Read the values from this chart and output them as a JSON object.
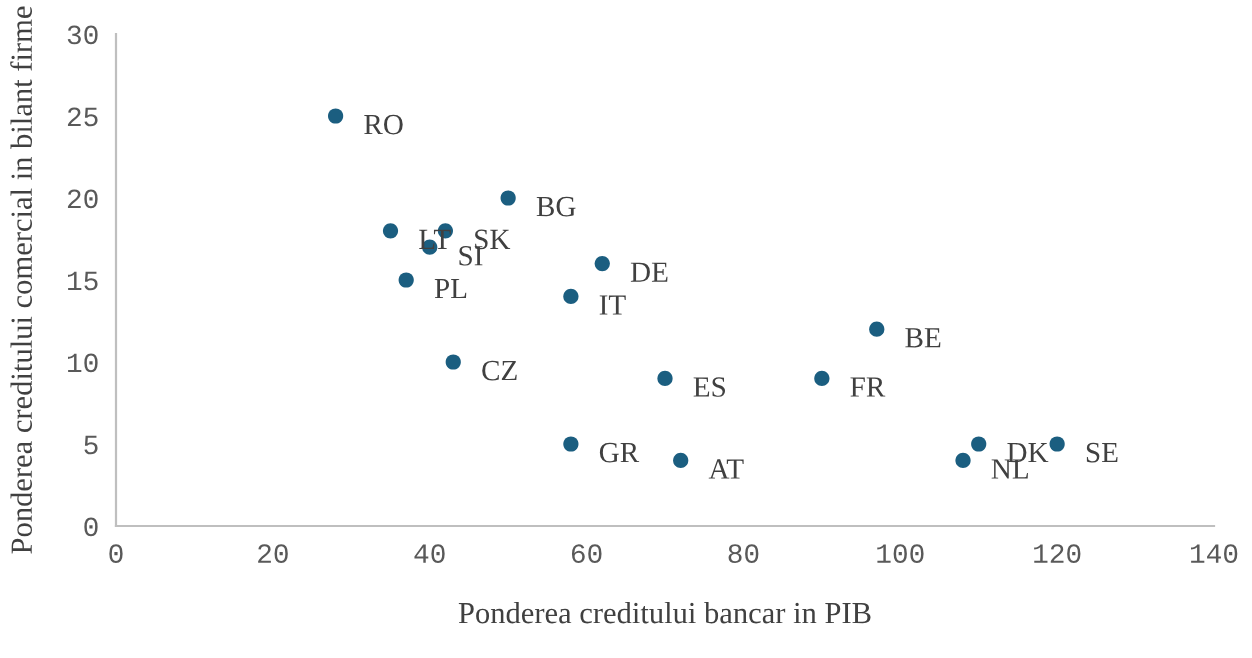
{
  "chart_data": {
    "type": "scatter",
    "xlabel": "Ponderea creditului bancar in PIB",
    "ylabel": "Ponderea creditului comercial in bilant firme",
    "x": [
      28,
      35,
      42,
      40,
      37,
      50,
      62,
      58,
      43,
      58,
      70,
      72,
      90,
      97,
      108,
      110,
      120
    ],
    "values": [
      25,
      18,
      18,
      17,
      15,
      20,
      16,
      14,
      10,
      5,
      9,
      4,
      9,
      12,
      4,
      5,
      5
    ],
    "color": "#1b5e80",
    "marker": "circle",
    "grid": false,
    "xlim": [
      0,
      140
    ],
    "xticks": [
      0,
      20,
      40,
      60,
      80,
      100,
      120,
      140
    ],
    "ylim": [
      0,
      30
    ],
    "yticks": [
      0,
      5,
      10,
      15,
      20,
      25,
      30
    ],
    "annotations": [
      {
        "text": "RO",
        "x": 28,
        "y": 25
      },
      {
        "text": "LT",
        "x": 35,
        "y": 18
      },
      {
        "text": "SK",
        "x": 42,
        "y": 18
      },
      {
        "text": "SI",
        "x": 40,
        "y": 17
      },
      {
        "text": "PL",
        "x": 37,
        "y": 15
      },
      {
        "text": "BG",
        "x": 50,
        "y": 20
      },
      {
        "text": "DE",
        "x": 62,
        "y": 16
      },
      {
        "text": "IT",
        "x": 58,
        "y": 14
      },
      {
        "text": "CZ",
        "x": 43,
        "y": 10
      },
      {
        "text": "GR",
        "x": 58,
        "y": 5
      },
      {
        "text": "ES",
        "x": 70,
        "y": 9
      },
      {
        "text": "AT",
        "x": 72,
        "y": 4
      },
      {
        "text": "FR",
        "x": 90,
        "y": 9
      },
      {
        "text": "BE",
        "x": 97,
        "y": 12
      },
      {
        "text": "NL",
        "x": 108,
        "y": 4
      },
      {
        "text": "DK",
        "x": 110,
        "y": 5
      },
      {
        "text": "SE",
        "x": 120,
        "y": 5
      }
    ]
  }
}
